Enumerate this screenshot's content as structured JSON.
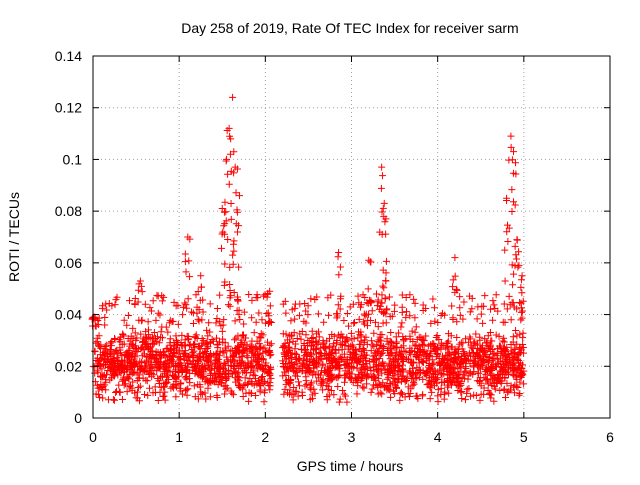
{
  "chart_data": {
    "type": "scatter",
    "title": "Day 258 of 2019, Rate Of TEC Index for receiver sarm",
    "xlabel": "GPS time / hours",
    "ylabel": "ROTI / TECUs",
    "xlim": [
      0,
      6
    ],
    "ylim": [
      0,
      0.14
    ],
    "xticks": [
      0,
      1,
      2,
      3,
      4,
      5,
      6
    ],
    "xtick_labels": [
      "0",
      "1",
      "2",
      "3",
      "4",
      "5",
      "6"
    ],
    "yticks": [
      0,
      0.02,
      0.04,
      0.06,
      0.08,
      0.1,
      0.12,
      0.14
    ],
    "ytick_labels": [
      "0",
      "0.02",
      "0.04",
      "0.06",
      "0.08",
      "0.1",
      "0.12",
      "0.14"
    ],
    "grid": true,
    "marker": "+",
    "marker_color": "#ff0000",
    "series": [
      {
        "name": "ROTI",
        "note": "Dense scatter of ROTI samples; data gap between ~2.07 h and ~2.2 h; no data after ~5.0 h. Peaks listed explicitly.",
        "segments": [
          {
            "x_start": 0.0,
            "x_end": 2.07
          },
          {
            "x_start": 2.2,
            "x_end": 5.0
          }
        ],
        "baseline_range": [
          0.008,
          0.035
        ],
        "peaks": [
          {
            "x": 0.02,
            "y": 0.039
          },
          {
            "x": 0.55,
            "y": 0.053
          },
          {
            "x": 1.1,
            "y": 0.07
          },
          {
            "x": 1.25,
            "y": 0.055
          },
          {
            "x": 1.5,
            "y": 0.081
          },
          {
            "x": 1.55,
            "y": 0.1
          },
          {
            "x": 1.58,
            "y": 0.112
          },
          {
            "x": 1.62,
            "y": 0.124
          },
          {
            "x": 1.65,
            "y": 0.097
          },
          {
            "x": 1.7,
            "y": 0.086
          },
          {
            "x": 2.05,
            "y": 0.049
          },
          {
            "x": 2.85,
            "y": 0.064
          },
          {
            "x": 3.2,
            "y": 0.061
          },
          {
            "x": 3.35,
            "y": 0.097
          },
          {
            "x": 3.38,
            "y": 0.083
          },
          {
            "x": 3.4,
            "y": 0.077
          },
          {
            "x": 4.2,
            "y": 0.062
          },
          {
            "x": 4.8,
            "y": 0.085
          },
          {
            "x": 4.85,
            "y": 0.109
          },
          {
            "x": 4.88,
            "y": 0.103
          },
          {
            "x": 4.92,
            "y": 0.069
          },
          {
            "x": 4.98,
            "y": 0.055
          }
        ]
      }
    ]
  }
}
